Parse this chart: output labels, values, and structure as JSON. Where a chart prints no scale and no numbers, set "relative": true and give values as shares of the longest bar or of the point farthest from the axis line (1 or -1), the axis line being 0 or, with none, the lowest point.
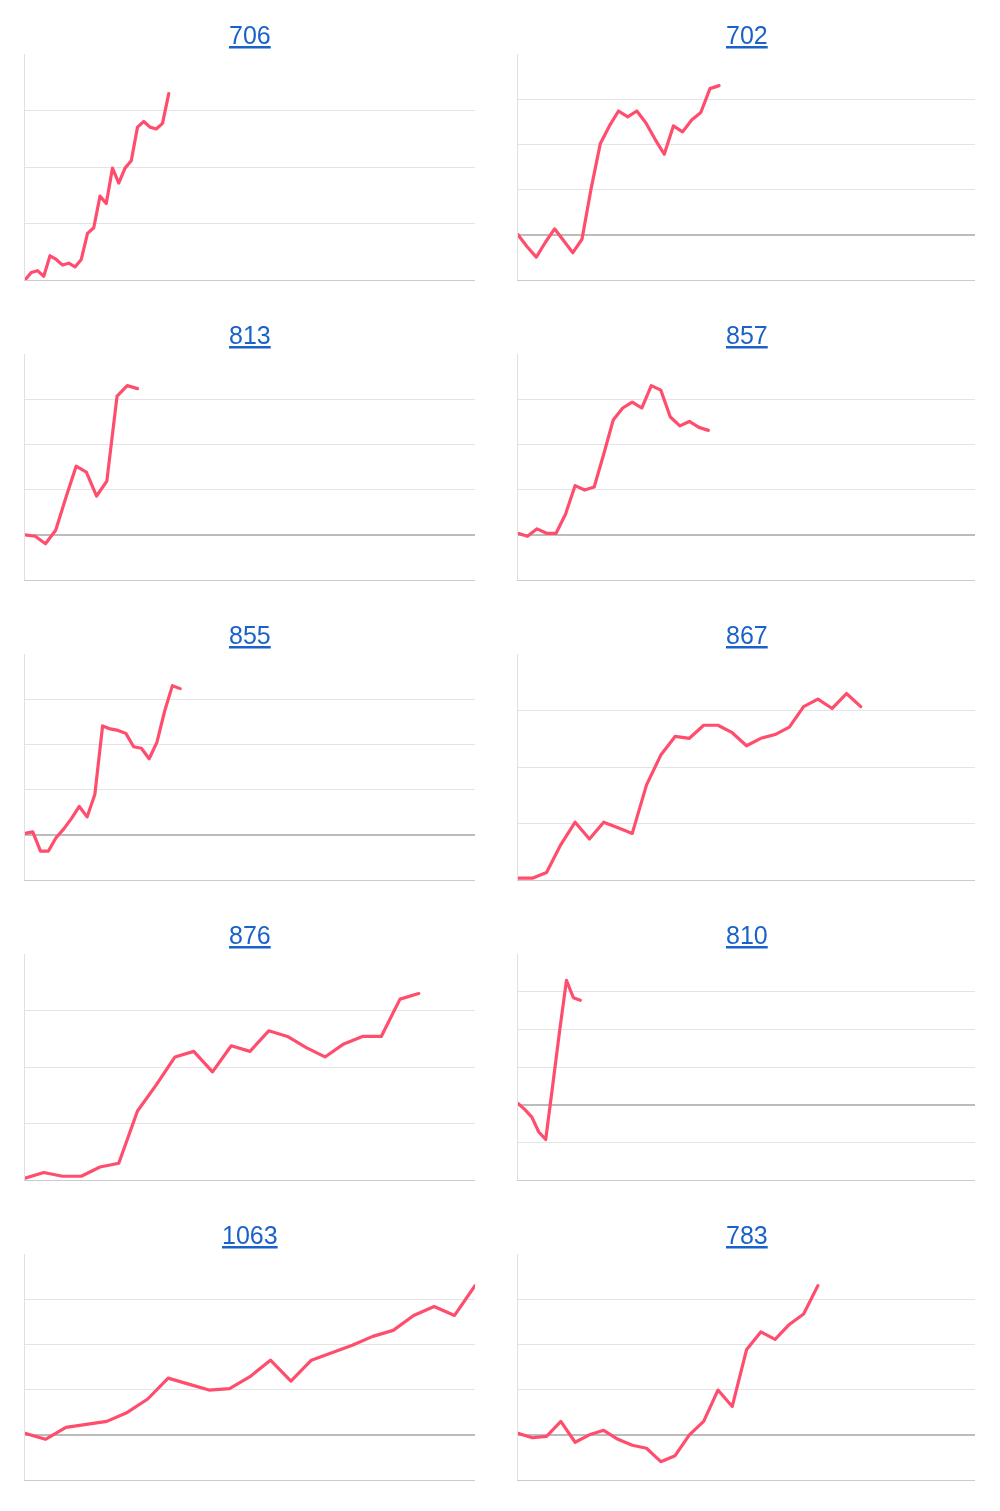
{
  "chart_data": [
    {
      "type": "line",
      "title": "706",
      "relative": true,
      "grid": "y",
      "line_style": "solid",
      "categories": [
        null,
        null,
        null,
        null,
        null,
        null,
        null,
        null,
        null,
        null,
        null,
        null,
        null,
        null,
        null,
        null,
        null,
        null,
        null,
        null,
        null,
        null,
        null,
        null,
        null,
        null,
        null,
        null,
        null,
        null,
        null,
        null,
        null,
        null,
        null,
        null,
        null,
        null,
        null,
        null,
        null,
        null,
        null,
        null,
        null,
        null,
        null,
        null,
        null,
        null,
        null,
        null,
        null,
        null,
        null,
        null,
        null,
        null,
        null,
        null,
        null,
        null,
        null,
        null,
        null,
        null,
        null,
        null,
        null,
        null,
        null,
        null,
        null
      ],
      "series": [
        {
          "color": "#ff4d6d",
          "values": [
            0,
            0.04,
            0.05,
            0.02,
            0.13,
            0.11,
            0.08,
            0.09,
            0.07,
            0.11,
            0.25,
            0.28,
            0.45,
            0.41,
            0.6,
            0.52,
            0.6,
            0.64,
            0.82,
            0.85,
            0.82,
            0.81,
            0.84,
            1,
            null,
            null,
            null,
            null,
            null,
            null,
            null,
            null,
            null,
            null,
            null,
            null,
            null,
            null,
            null,
            null,
            null,
            null,
            null,
            null,
            null,
            null,
            null,
            null,
            null,
            null,
            null,
            null,
            null,
            null,
            null,
            null,
            null,
            null,
            null,
            null,
            null,
            null,
            null,
            null,
            null,
            null,
            null,
            null,
            null,
            null,
            null,
            null,
            null
          ]
        }
      ]
    },
    {
      "type": "line",
      "title": "702",
      "relative": true,
      "grid": "y",
      "line_style": "solid",
      "categories": [
        null,
        null,
        null,
        null,
        null,
        null,
        null,
        null,
        null,
        null,
        null,
        null,
        null,
        null,
        null,
        null,
        null,
        null,
        null,
        null,
        null,
        null,
        null,
        null,
        null,
        null,
        null,
        null,
        null,
        null,
        null,
        null,
        null,
        null,
        null,
        null,
        null,
        null,
        null,
        null,
        null,
        null,
        null,
        null,
        null,
        null,
        null,
        null,
        null,
        null,
        null
      ],
      "series": [
        {
          "color": "#ff4d6d",
          "values": [
            0,
            -0.08,
            -0.15,
            -0.05,
            0.04,
            -0.04,
            -0.12,
            -0.03,
            0.31,
            0.61,
            0.73,
            0.83,
            0.79,
            0.83,
            0.75,
            0.64,
            0.54,
            0.73,
            0.69,
            0.77,
            0.82,
            0.98,
            1,
            null,
            null,
            null,
            null,
            null,
            null,
            null,
            null,
            null,
            null,
            null,
            null,
            null,
            null,
            null,
            null,
            null,
            null,
            null,
            null,
            null,
            null,
            null,
            null,
            null,
            null,
            null,
            null
          ]
        }
      ]
    },
    {
      "type": "line",
      "title": "813",
      "relative": true,
      "grid": "y",
      "line_style": "solid",
      "categories": [
        null,
        null,
        null,
        null,
        null,
        null,
        null,
        null,
        null,
        null,
        null,
        null,
        null,
        null,
        null,
        null,
        null,
        null,
        null,
        null,
        null,
        null,
        null,
        null,
        null,
        null,
        null,
        null,
        null,
        null,
        null,
        null,
        null,
        null,
        null,
        null,
        null,
        null,
        null,
        null,
        null,
        null,
        null,
        null,
        null
      ],
      "series": [
        {
          "color": "#ff4d6d",
          "values": [
            0,
            -0.01,
            -0.06,
            0.03,
            0.25,
            0.46,
            0.42,
            0.26,
            0.36,
            0.93,
            1,
            0.98,
            null,
            null,
            null,
            null,
            null,
            null,
            null,
            null,
            null,
            null,
            null,
            null,
            null,
            null,
            null,
            null,
            null,
            null,
            null,
            null,
            null,
            null,
            null,
            null,
            null,
            null,
            null,
            null,
            null,
            null,
            null,
            null,
            null
          ]
        }
      ]
    },
    {
      "type": "line",
      "title": "857",
      "relative": true,
      "grid": "y",
      "line_style": "solid",
      "categories": [
        null,
        null,
        null,
        null,
        null,
        null,
        null,
        null,
        null,
        null,
        null,
        null,
        null,
        null,
        null,
        null,
        null,
        null,
        null,
        null,
        null,
        null,
        null,
        null,
        null,
        null,
        null,
        null,
        null,
        null,
        null,
        null,
        null,
        null,
        null,
        null,
        null,
        null,
        null,
        null,
        null,
        null,
        null,
        null,
        null,
        null,
        null,
        null,
        null
      ],
      "series": [
        {
          "color": "#ff4d6d",
          "values": [
            0.01,
            -0.01,
            0.04,
            0.01,
            0.01,
            0.14,
            0.33,
            0.3,
            0.32,
            0.54,
            0.77,
            0.85,
            0.89,
            0.85,
            1,
            0.97,
            0.79,
            0.73,
            0.76,
            0.72,
            0.7,
            null,
            null,
            null,
            null,
            null,
            null,
            null,
            null,
            null,
            null,
            null,
            null,
            null,
            null,
            null,
            null,
            null,
            null,
            null,
            null,
            null,
            null,
            null,
            null,
            null,
            null,
            null,
            null
          ]
        }
      ]
    },
    {
      "type": "line",
      "title": "855",
      "relative": true,
      "grid": "y",
      "line_style": "solid",
      "categories": [
        null,
        null,
        null,
        null,
        null,
        null,
        null,
        null,
        null,
        null,
        null,
        null,
        null,
        null,
        null,
        null,
        null,
        null,
        null,
        null,
        null,
        null,
        null,
        null,
        null,
        null,
        null,
        null,
        null,
        null,
        null,
        null,
        null,
        null,
        null,
        null,
        null,
        null,
        null,
        null,
        null,
        null,
        null,
        null,
        null,
        null,
        null,
        null,
        null,
        null,
        null,
        null,
        null,
        null,
        null,
        null,
        null,
        null,
        null
      ],
      "series": [
        {
          "color": "#ff4d6d",
          "values": [
            0.01,
            0.02,
            -0.11,
            -0.11,
            -0.02,
            0.04,
            0.11,
            0.19,
            0.12,
            0.27,
            0.73,
            0.71,
            0.7,
            0.68,
            0.59,
            0.58,
            0.51,
            0.62,
            0.83,
            1,
            0.98,
            null,
            null,
            null,
            null,
            null,
            null,
            null,
            null,
            null,
            null,
            null,
            null,
            null,
            null,
            null,
            null,
            null,
            null,
            null,
            null,
            null,
            null,
            null,
            null,
            null,
            null,
            null,
            null,
            null,
            null,
            null,
            null,
            null,
            null,
            null,
            null,
            null,
            null
          ]
        }
      ]
    },
    {
      "type": "line",
      "title": "867",
      "relative": true,
      "grid": "y",
      "line_style": "solid",
      "categories": [
        null,
        null,
        null,
        null,
        null,
        null,
        null,
        null,
        null,
        null,
        null,
        null,
        null,
        null,
        null,
        null,
        null,
        null,
        null,
        null,
        null,
        null,
        null,
        null,
        null,
        null,
        null,
        null,
        null,
        null,
        null,
        null,
        null
      ],
      "series": [
        {
          "color": "#ff4d6d",
          "values": [
            0.01,
            0.01,
            0.04,
            0.19,
            0.31,
            0.22,
            0.31,
            0.28,
            0.25,
            0.51,
            0.67,
            0.77,
            0.76,
            0.83,
            0.83,
            0.79,
            0.72,
            0.76,
            0.78,
            0.82,
            0.93,
            0.97,
            0.92,
            1,
            0.93,
            null,
            null,
            null,
            null,
            null,
            null,
            null,
            null
          ]
        }
      ]
    },
    {
      "type": "line",
      "title": "876",
      "relative": true,
      "grid": "y",
      "line_style": "solid",
      "categories": [
        null,
        null,
        null,
        null,
        null,
        null,
        null,
        null,
        null,
        null,
        null,
        null,
        null,
        null,
        null,
        null,
        null,
        null,
        null,
        null,
        null,
        null,
        null,
        null,
        null
      ],
      "series": [
        {
          "color": "#ff4d6d",
          "values": [
            0.01,
            0.04,
            0.02,
            0.02,
            0.07,
            0.09,
            0.37,
            0.51,
            0.66,
            0.69,
            0.58,
            0.72,
            0.69,
            0.8,
            0.77,
            0.71,
            0.66,
            0.73,
            0.77,
            0.77,
            0.97,
            1,
            null,
            null,
            null
          ]
        }
      ]
    },
    {
      "type": "line",
      "title": "810",
      "relative": true,
      "grid": "y",
      "line_style": "solid",
      "categories": [
        null,
        null,
        null,
        null,
        null,
        null,
        null,
        null,
        null,
        null,
        null,
        null,
        null,
        null,
        null,
        null,
        null,
        null,
        null,
        null,
        null,
        null,
        null,
        null,
        null,
        null,
        null,
        null,
        null,
        null,
        null,
        null,
        null,
        null,
        null,
        null,
        null,
        null,
        null,
        null,
        null,
        null,
        null,
        null,
        null,
        null,
        null,
        null,
        null,
        null,
        null,
        null,
        null,
        null,
        null,
        null,
        null,
        null,
        null,
        null,
        null,
        null,
        null,
        null,
        null,
        null,
        null
      ],
      "series": [
        {
          "color": "#ff4d6d",
          "values": [
            0.01,
            -0.04,
            -0.1,
            -0.22,
            -0.28,
            0.15,
            0.59,
            1,
            0.86,
            0.84,
            null,
            null,
            null,
            null,
            null,
            null,
            null,
            null,
            null,
            null,
            null,
            null,
            null,
            null,
            null,
            null,
            null,
            null,
            null,
            null,
            null,
            null,
            null,
            null,
            null,
            null,
            null,
            null,
            null,
            null,
            null,
            null,
            null,
            null,
            null,
            null,
            null,
            null,
            null,
            null,
            null,
            null,
            null,
            null,
            null,
            null,
            null,
            null,
            null,
            null,
            null,
            null,
            null,
            null,
            null,
            null,
            null
          ]
        }
      ]
    },
    {
      "type": "line",
      "title": "1063",
      "relative": true,
      "grid": "y",
      "line_style": "solid",
      "categories": [
        null,
        null,
        null,
        null,
        null,
        null,
        null,
        null,
        null,
        null,
        null,
        null,
        null,
        null,
        null,
        null,
        null,
        null,
        null,
        null,
        null,
        null,
        null
      ],
      "series": [
        {
          "color": "#ff4d6d",
          "values": [
            0.01,
            -0.03,
            0.05,
            0.07,
            0.09,
            0.15,
            0.24,
            0.38,
            0.34,
            0.3,
            0.31,
            0.39,
            0.5,
            0.36,
            0.5,
            0.55,
            0.6,
            0.66,
            0.7,
            0.8,
            0.86,
            0.8,
            1
          ]
        }
      ]
    },
    {
      "type": "line",
      "title": "783",
      "relative": true,
      "grid": "y",
      "line_style": "solid",
      "categories": [
        null,
        null,
        null,
        null,
        null,
        null,
        null,
        null,
        null,
        null,
        null,
        null,
        null,
        null,
        null,
        null,
        null,
        null,
        null,
        null,
        null,
        null,
        null,
        null,
        null,
        null,
        null,
        null,
        null,
        null,
        null,
        null,
        null
      ],
      "series": [
        {
          "color": "#ff4d6d",
          "values": [
            0.01,
            -0.02,
            -0.01,
            0.09,
            -0.05,
            0,
            0.03,
            -0.03,
            -0.07,
            -0.09,
            -0.18,
            -0.14,
            0,
            0.09,
            0.3,
            0.19,
            0.57,
            0.69,
            0.64,
            0.74,
            0.81,
            1,
            null,
            null,
            null,
            null,
            null,
            null,
            null,
            null,
            null,
            null,
            null
          ]
        }
      ]
    }
  ]
}
